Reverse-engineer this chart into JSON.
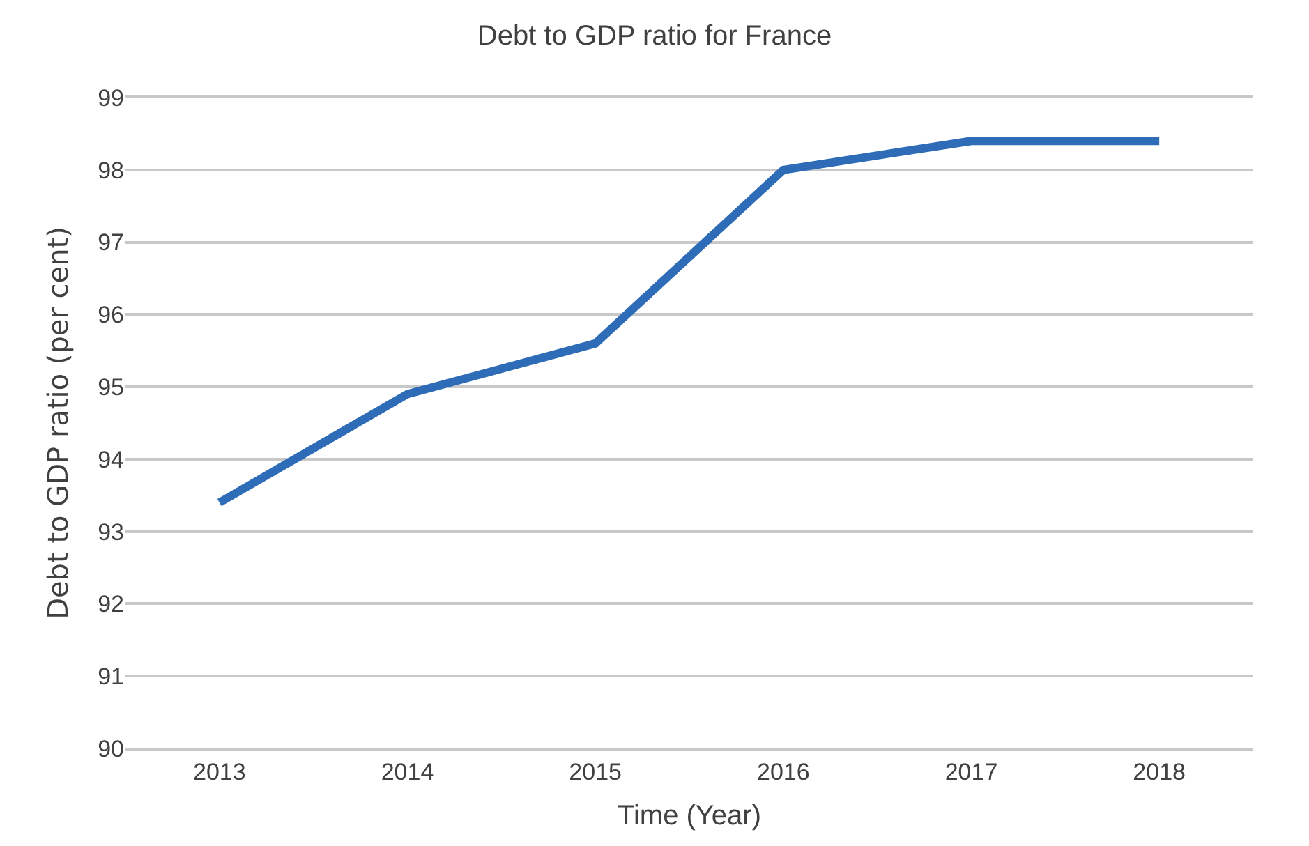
{
  "chart_data": {
    "type": "line",
    "title": "Debt to GDP ratio for France",
    "xlabel": "Time (Year)",
    "ylabel": "Debt to GDP ratio (per cent)",
    "categories": [
      "2013",
      "2014",
      "2015",
      "2016",
      "2017",
      "2018"
    ],
    "series": [
      {
        "color": "#2f6cb8",
        "values": [
          93.4,
          94.9,
          95.6,
          98.0,
          98.4,
          98.4
        ]
      }
    ],
    "ylim": [
      90,
      99
    ],
    "yticks": [
      90,
      91,
      92,
      93,
      94,
      95,
      96,
      97,
      98,
      99
    ],
    "grid": "y",
    "marker": "none",
    "line_style": "solid"
  }
}
